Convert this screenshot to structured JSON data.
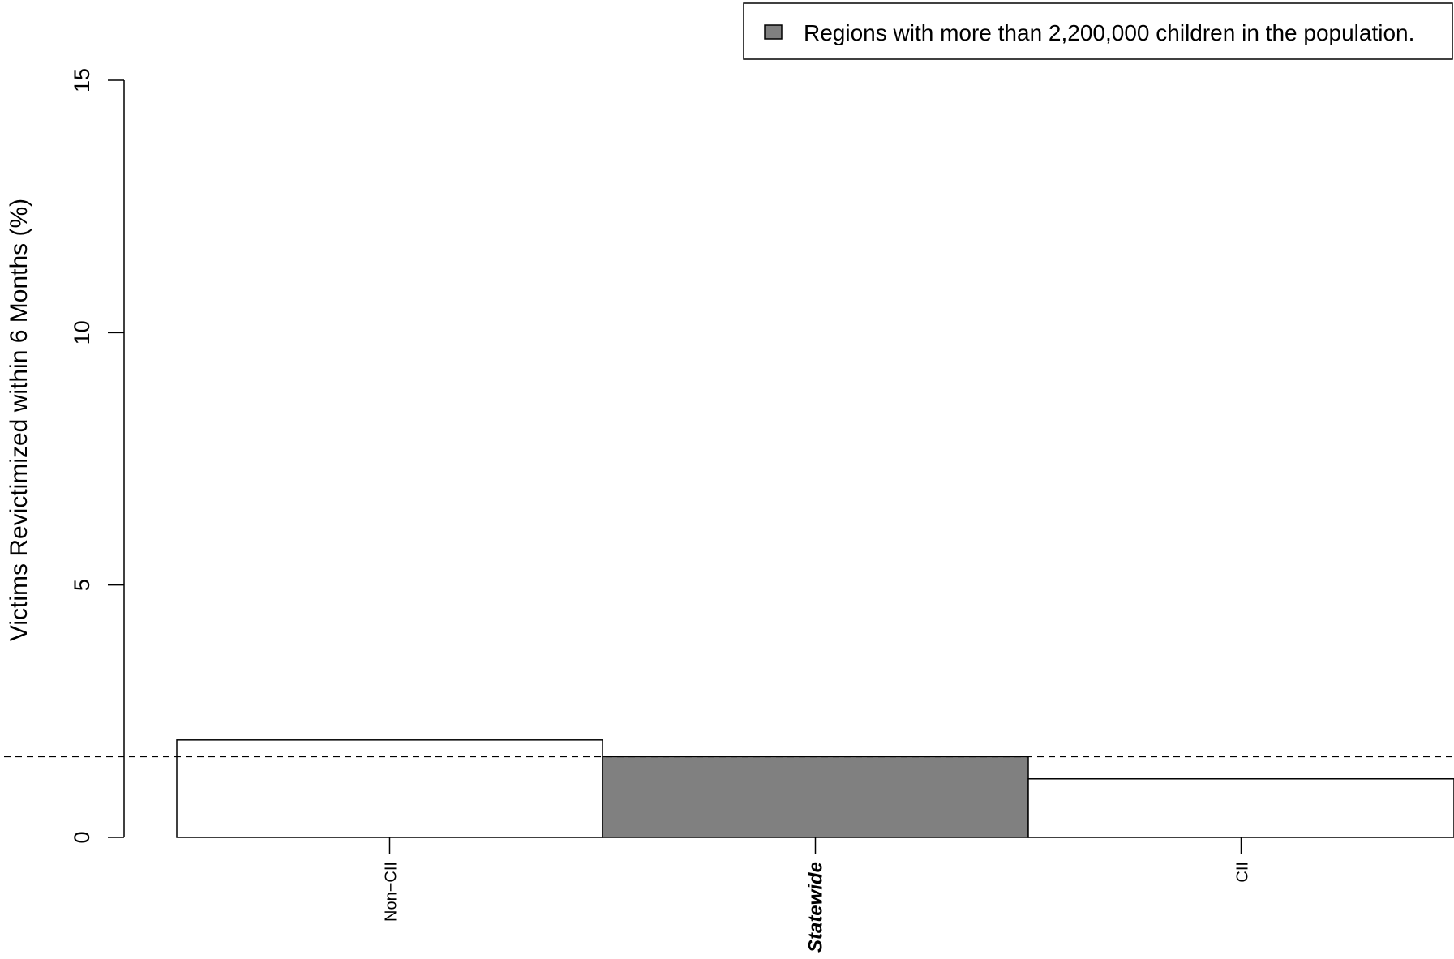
{
  "chart_data": {
    "type": "bar",
    "title": "",
    "xlabel": "",
    "ylabel": "Victims Revictimized within 6 Months (%)",
    "ylim": [
      0,
      15
    ],
    "yticks": [
      0,
      5,
      10,
      15
    ],
    "categories": [
      "Non−CII",
      "Statewide",
      "CII"
    ],
    "values": [
      1.93,
      1.6,
      1.16
    ],
    "emphasized_category": "Statewide",
    "highlighted_category": "Statewide",
    "reference_line": {
      "value": 1.6,
      "style": "dashed"
    },
    "legend": {
      "placement": "top-right",
      "entries": [
        {
          "label": "Regions with more than 2,200,000 children in the population.",
          "color": "#808080"
        }
      ]
    },
    "colors": {
      "default_fill": "#ffffff",
      "highlight_fill": "#808080",
      "stroke": "#000000"
    },
    "grid": false
  }
}
